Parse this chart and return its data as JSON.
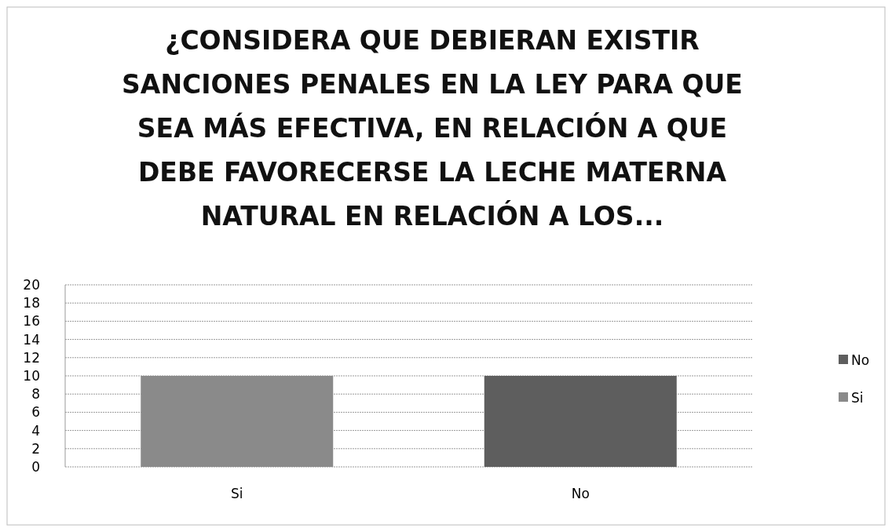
{
  "chart_data": {
    "type": "bar",
    "title": "¿CONSIDERA QUE DEBIERAN EXISTIR SANCIONES PENALES EN LA LEY PARA QUE SEA MÁS EFECTIVA, EN RELACIÓN A QUE DEBE FAVORECERSE LA LECHE MATERNA NATURAL EN RELACIÓN A LOS...",
    "categories": [
      "Si",
      "No"
    ],
    "stacked": true,
    "series": [
      {
        "name": "Si",
        "color": "#8a8a8a",
        "values": [
          10,
          null
        ]
      },
      {
        "name": "No",
        "color": "#5e5e5e",
        "values": [
          null,
          10
        ]
      }
    ],
    "ylim": [
      0,
      20
    ],
    "yticks": [
      0,
      2,
      4,
      6,
      8,
      10,
      12,
      14,
      16,
      18,
      20
    ],
    "grid": "y",
    "legend": "right"
  }
}
